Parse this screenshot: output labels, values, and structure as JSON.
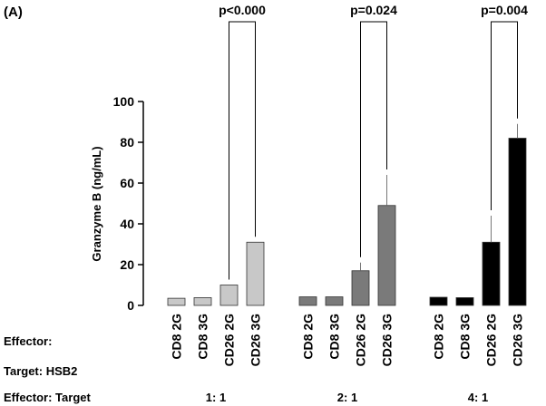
{
  "panel_label": "(A)",
  "row_labels": {
    "effector": "Effector:",
    "target": "Target: HSB2",
    "ratio": "Effector: Target"
  },
  "chart_data": {
    "type": "bar",
    "ylabel": "Granzyme B (ng/mL)",
    "xlabel": "",
    "ylim": [
      0,
      100
    ],
    "yticks": [
      0,
      20,
      40,
      60,
      80,
      100
    ],
    "groups": [
      {
        "ratio_label": "1: 1",
        "color": "#c8c8c8",
        "categories": [
          "CD8 2G",
          "CD8 3G",
          "CD26 2G",
          "CD26 3G"
        ],
        "values": [
          3.5,
          3.8,
          10,
          31
        ],
        "errors": [
          0,
          0,
          0,
          0
        ],
        "p_label": "p<0.000"
      },
      {
        "ratio_label": "2: 1",
        "color": "#7a7a7a",
        "categories": [
          "CD8 2G",
          "CD8 3G",
          "CD26 2G",
          "CD26 3G"
        ],
        "values": [
          4.2,
          4.2,
          17,
          49
        ],
        "errors": [
          0,
          0,
          4,
          15
        ],
        "p_label": "p=0.024"
      },
      {
        "ratio_label": "4: 1",
        "color": "#000000",
        "categories": [
          "CD8 2G",
          "CD8 3G",
          "CD26 2G",
          "CD26 3G"
        ],
        "values": [
          4,
          3.8,
          31,
          82
        ],
        "errors": [
          0,
          0,
          13,
          7
        ],
        "p_label": "p=0.004"
      }
    ]
  }
}
